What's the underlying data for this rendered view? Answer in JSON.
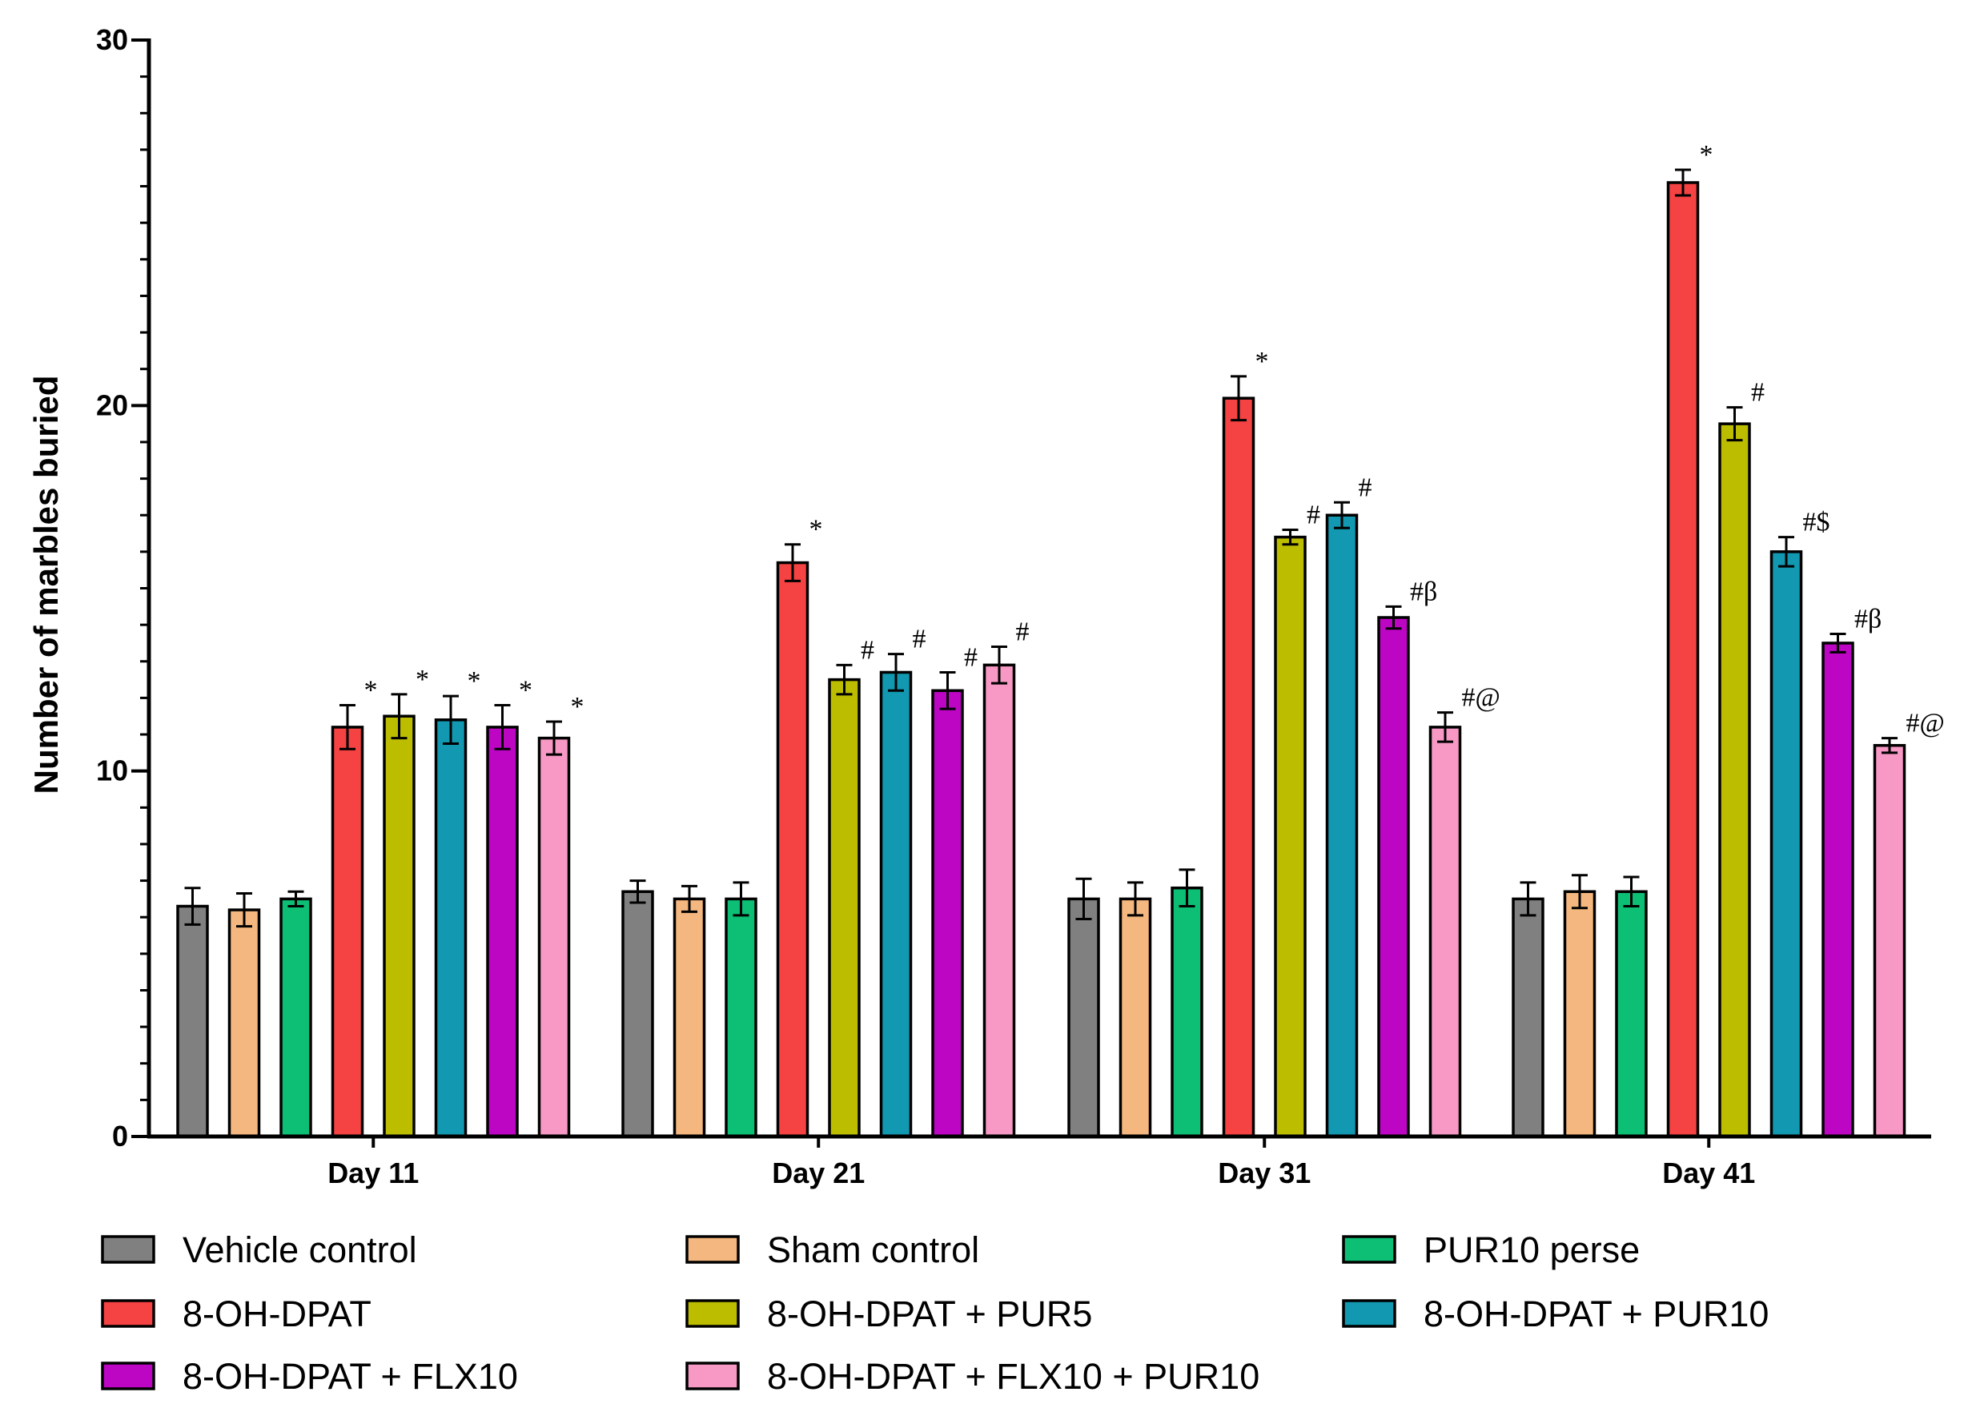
{
  "chart_data": {
    "type": "bar",
    "title": "",
    "xlabel": "",
    "ylabel": "Number of marbles buried",
    "ylim": [
      0,
      30
    ],
    "yticks": [
      0,
      10,
      20,
      30
    ],
    "grid": false,
    "legend_position": "bottom",
    "categories": [
      "Day 11",
      "Day 21",
      "Day 31",
      "Day 41"
    ],
    "series": [
      {
        "name": "Vehicle control",
        "color": "#808080",
        "values": [
          6.3,
          6.7,
          6.5,
          6.5
        ],
        "errors": [
          0.5,
          0.3,
          0.55,
          0.45
        ],
        "annotations": [
          "",
          "",
          "",
          ""
        ]
      },
      {
        "name": "Sham control",
        "color": "#F4B77F",
        "values": [
          6.2,
          6.5,
          6.5,
          6.7
        ],
        "errors": [
          0.45,
          0.35,
          0.45,
          0.45
        ],
        "annotations": [
          "",
          "",
          "",
          ""
        ]
      },
      {
        "name": "PUR10 perse",
        "color": "#0CBF74",
        "values": [
          6.5,
          6.5,
          6.8,
          6.7
        ],
        "errors": [
          0.2,
          0.45,
          0.5,
          0.4
        ],
        "annotations": [
          "",
          "",
          "",
          ""
        ]
      },
      {
        "name": "8-OH-DPAT",
        "color": "#F54242",
        "values": [
          11.2,
          15.7,
          20.2,
          26.1
        ],
        "errors": [
          0.6,
          0.5,
          0.6,
          0.35
        ],
        "annotations": [
          "*",
          "*",
          "*",
          "*"
        ]
      },
      {
        "name": "8-OH-DPAT + PUR5",
        "color": "#BDBD00",
        "values": [
          11.5,
          12.5,
          16.4,
          19.5
        ],
        "errors": [
          0.6,
          0.4,
          0.2,
          0.45
        ],
        "annotations": [
          "*",
          "#",
          "#",
          "#"
        ]
      },
      {
        "name": "8-OH-DPAT + PUR10",
        "color": "#1298B0",
        "values": [
          11.4,
          12.7,
          17.0,
          16.0
        ],
        "errors": [
          0.65,
          0.5,
          0.35,
          0.4
        ],
        "annotations": [
          "*",
          "#",
          "#",
          "#$"
        ]
      },
      {
        "name": "8-OH-DPAT + FLX10",
        "color": "#BD05C4",
        "values": [
          11.2,
          12.2,
          14.2,
          13.5
        ],
        "errors": [
          0.6,
          0.5,
          0.3,
          0.25
        ],
        "annotations": [
          "*",
          "#",
          "#β",
          "#β"
        ]
      },
      {
        "name": "8-OH-DPAT + FLX10 + PUR10",
        "color": "#F799C4",
        "values": [
          10.9,
          12.9,
          11.2,
          10.7
        ],
        "errors": [
          0.45,
          0.5,
          0.4,
          0.2
        ],
        "annotations": [
          "*",
          "#",
          "#@",
          "#@"
        ]
      }
    ]
  }
}
